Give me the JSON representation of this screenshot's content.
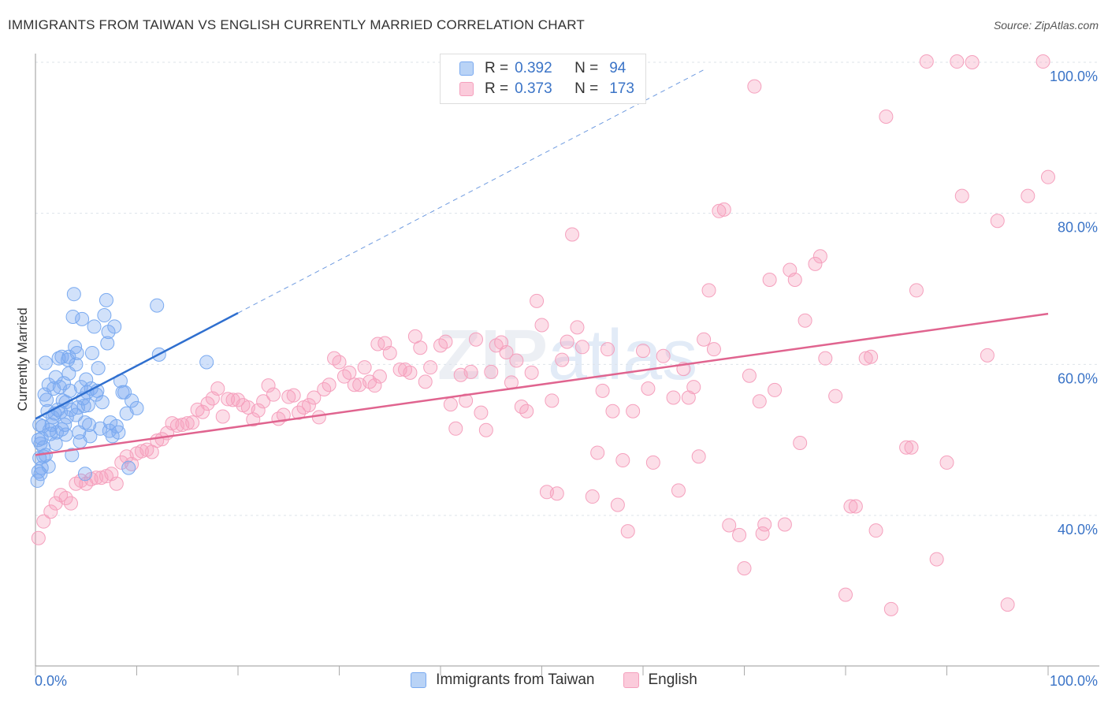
{
  "title": "IMMIGRANTS FROM TAIWAN VS ENGLISH CURRENTLY MARRIED CORRELATION CHART",
  "source": "Source: ZipAtlas.com",
  "watermark": {
    "a": "ZIP",
    "b": "atlas"
  },
  "legend": {
    "rows": [
      {
        "r_label": "R =",
        "r_value": "0.392",
        "n_label": "N =",
        "n_value": "94",
        "color": "#7aaaf0"
      },
      {
        "r_label": "R =",
        "r_value": "0.373",
        "n_label": "N =",
        "n_value": "173",
        "color": "#f5a0bd"
      }
    ]
  },
  "bottom_legend": [
    "Immigrants from Taiwan",
    "English"
  ],
  "chart_data": {
    "type": "scatter",
    "title": "IMMIGRANTS FROM TAIWAN VS ENGLISH CURRENTLY MARRIED CORRELATION CHART",
    "xlabel": "",
    "ylabel": "Currently Married",
    "xlim": [
      0,
      100
    ],
    "ylim": [
      20,
      103
    ],
    "x_tick_labels": [
      "0.0%",
      "100.0%"
    ],
    "y_ticks": [
      40,
      60,
      80,
      100
    ],
    "y_tick_labels": [
      "40.0%",
      "60.0%",
      "80.0%",
      "100.0%"
    ],
    "grid": true,
    "legend_position": "top-center",
    "series": [
      {
        "name": "Immigrants from Taiwan",
        "color": "#7aaaf0",
        "line_color": "#2f6fcf",
        "trend": {
          "x0": 0,
          "y0": 52.8,
          "x1": 20,
          "y1": 66.8,
          "dash_to_x": 66,
          "dash_to_y": 99
        },
        "points": [
          [
            0.2,
            44.6
          ],
          [
            0.3,
            45.8
          ],
          [
            0.4,
            47.6
          ],
          [
            0.5,
            49.5
          ],
          [
            0.6,
            50.2
          ],
          [
            0.7,
            51.8
          ],
          [
            0.8,
            49.0
          ],
          [
            1.0,
            48.0
          ],
          [
            0.4,
            52.0
          ],
          [
            0.6,
            46.3
          ],
          [
            1.2,
            53.8
          ],
          [
            1.1,
            55.3
          ],
          [
            1.3,
            57.3
          ],
          [
            1.5,
            50.8
          ],
          [
            1.6,
            52.0
          ],
          [
            1.8,
            56.8
          ],
          [
            1.9,
            53.5
          ],
          [
            2.0,
            58.3
          ],
          [
            2.1,
            51.0
          ],
          [
            2.2,
            54.0
          ],
          [
            2.3,
            60.8
          ],
          [
            2.4,
            57.0
          ],
          [
            2.5,
            53.7
          ],
          [
            2.6,
            61.0
          ],
          [
            2.7,
            55.2
          ],
          [
            2.8,
            57.5
          ],
          [
            2.9,
            52.0
          ],
          [
            3.0,
            50.7
          ],
          [
            3.1,
            53.0
          ],
          [
            3.2,
            60.6
          ],
          [
            3.3,
            61.0
          ],
          [
            3.4,
            56.5
          ],
          [
            3.5,
            54.0
          ],
          [
            3.6,
            48.0
          ],
          [
            3.7,
            66.3
          ],
          [
            3.8,
            69.3
          ],
          [
            3.9,
            62.3
          ],
          [
            4.0,
            60.0
          ],
          [
            4.1,
            61.5
          ],
          [
            4.2,
            54.3
          ],
          [
            4.3,
            51.0
          ],
          [
            4.4,
            49.8
          ],
          [
            4.5,
            57.0
          ],
          [
            4.6,
            66.0
          ],
          [
            4.7,
            55.5
          ],
          [
            4.8,
            54.5
          ],
          [
            4.9,
            45.5
          ],
          [
            5.0,
            58.0
          ],
          [
            5.1,
            56.3
          ],
          [
            5.2,
            54.6
          ],
          [
            5.3,
            52.0
          ],
          [
            5.4,
            50.5
          ],
          [
            5.5,
            56.8
          ],
          [
            5.6,
            61.5
          ],
          [
            5.8,
            65.0
          ],
          [
            6.0,
            56.0
          ],
          [
            6.2,
            59.5
          ],
          [
            6.4,
            51.5
          ],
          [
            6.6,
            55.0
          ],
          [
            6.8,
            66.5
          ],
          [
            7.0,
            68.5
          ],
          [
            7.1,
            62.8
          ],
          [
            7.2,
            64.3
          ],
          [
            7.4,
            52.3
          ],
          [
            7.6,
            50.5
          ],
          [
            7.8,
            65.0
          ],
          [
            8.0,
            51.8
          ],
          [
            8.2,
            51.0
          ],
          [
            8.4,
            57.8
          ],
          [
            8.6,
            56.3
          ],
          [
            8.8,
            56.3
          ],
          [
            9.0,
            53.5
          ],
          [
            9.2,
            46.3
          ],
          [
            9.5,
            55.2
          ],
          [
            10.0,
            54.2
          ],
          [
            12.0,
            67.8
          ],
          [
            12.2,
            61.3
          ],
          [
            16.9,
            60.3
          ],
          [
            1.0,
            60.2
          ],
          [
            0.9,
            56.0
          ],
          [
            2.0,
            49.5
          ],
          [
            1.4,
            51.3
          ],
          [
            3.0,
            55.0
          ],
          [
            4.0,
            53.3
          ],
          [
            0.5,
            45.5
          ],
          [
            0.8,
            47.8
          ],
          [
            1.7,
            53.0
          ],
          [
            2.6,
            51.4
          ],
          [
            3.3,
            58.8
          ],
          [
            4.9,
            52.3
          ],
          [
            6.1,
            56.5
          ],
          [
            7.3,
            51.2
          ],
          [
            1.3,
            46.5
          ],
          [
            0.3,
            50.0
          ]
        ]
      },
      {
        "name": "English",
        "color": "#f5a0bd",
        "line_color": "#e0648f",
        "trend": {
          "x0": 0,
          "y0": 48.0,
          "x1": 100,
          "y1": 66.7
        },
        "points": [
          [
            0.3,
            37.0
          ],
          [
            0.8,
            39.2
          ],
          [
            1.5,
            40.5
          ],
          [
            2.0,
            41.6
          ],
          [
            2.5,
            42.7
          ],
          [
            3.0,
            42.3
          ],
          [
            3.5,
            41.6
          ],
          [
            4.0,
            44.2
          ],
          [
            4.5,
            44.6
          ],
          [
            5.0,
            44.2
          ],
          [
            5.5,
            44.8
          ],
          [
            6.0,
            45.0
          ],
          [
            6.5,
            45.0
          ],
          [
            7.0,
            45.2
          ],
          [
            7.5,
            45.5
          ],
          [
            8.0,
            44.2
          ],
          [
            8.5,
            47.0
          ],
          [
            9.0,
            47.8
          ],
          [
            9.5,
            46.8
          ],
          [
            10.0,
            48.2
          ],
          [
            10.5,
            48.5
          ],
          [
            11.0,
            48.7
          ],
          [
            11.5,
            48.4
          ],
          [
            12.0,
            49.9
          ],
          [
            12.5,
            50.1
          ],
          [
            13.0,
            50.9
          ],
          [
            13.5,
            52.2
          ],
          [
            14.0,
            51.9
          ],
          [
            14.5,
            52.0
          ],
          [
            15.0,
            52.2
          ],
          [
            15.5,
            52.3
          ],
          [
            16.0,
            54.0
          ],
          [
            16.5,
            53.7
          ],
          [
            17.0,
            54.8
          ],
          [
            17.5,
            55.5
          ],
          [
            18.0,
            56.8
          ],
          [
            18.5,
            53.1
          ],
          [
            19.0,
            55.4
          ],
          [
            19.5,
            55.3
          ],
          [
            20.0,
            55.3
          ],
          [
            20.5,
            54.6
          ],
          [
            21.0,
            54.3
          ],
          [
            21.5,
            52.7
          ],
          [
            22.0,
            53.9
          ],
          [
            22.5,
            55.1
          ],
          [
            23.0,
            57.2
          ],
          [
            23.5,
            56.0
          ],
          [
            24.0,
            52.8
          ],
          [
            24.5,
            53.3
          ],
          [
            25.0,
            55.7
          ],
          [
            25.5,
            55.9
          ],
          [
            26.0,
            53.6
          ],
          [
            26.5,
            54.3
          ],
          [
            27.0,
            54.6
          ],
          [
            27.5,
            55.6
          ],
          [
            28.0,
            53.0
          ],
          [
            28.5,
            56.7
          ],
          [
            29.0,
            57.3
          ],
          [
            29.5,
            60.8
          ],
          [
            30.0,
            60.3
          ],
          [
            30.5,
            58.4
          ],
          [
            31.0,
            58.9
          ],
          [
            31.5,
            57.3
          ],
          [
            32.0,
            57.3
          ],
          [
            32.5,
            59.6
          ],
          [
            33.0,
            57.7
          ],
          [
            33.5,
            57.2
          ],
          [
            34.0,
            58.4
          ],
          [
            34.5,
            62.8
          ],
          [
            35.0,
            61.5
          ],
          [
            36.0,
            59.3
          ],
          [
            36.5,
            59.3
          ],
          [
            37.0,
            58.9
          ],
          [
            37.5,
            63.7
          ],
          [
            38.0,
            62.2
          ],
          [
            38.5,
            57.7
          ],
          [
            39.0,
            59.6
          ],
          [
            40.0,
            62.5
          ],
          [
            40.5,
            63.0
          ],
          [
            41.0,
            54.7
          ],
          [
            41.5,
            51.5
          ],
          [
            42.0,
            58.6
          ],
          [
            42.5,
            55.2
          ],
          [
            43.0,
            59.0
          ],
          [
            43.5,
            63.3
          ],
          [
            44.0,
            53.6
          ],
          [
            44.5,
            51.3
          ],
          [
            45.0,
            59.0
          ],
          [
            45.5,
            62.5
          ],
          [
            46.0,
            62.9
          ],
          [
            46.5,
            61.6
          ],
          [
            47.0,
            57.6
          ],
          [
            48.0,
            54.4
          ],
          [
            48.5,
            53.8
          ],
          [
            49.0,
            58.9
          ],
          [
            49.5,
            68.4
          ],
          [
            50.0,
            65.2
          ],
          [
            50.5,
            43.1
          ],
          [
            51.0,
            55.2
          ],
          [
            51.5,
            42.9
          ],
          [
            52.0,
            60.6
          ],
          [
            53.0,
            77.2
          ],
          [
            53.5,
            64.9
          ],
          [
            54.0,
            62.3
          ],
          [
            55.0,
            42.5
          ],
          [
            55.5,
            48.3
          ],
          [
            56.0,
            56.5
          ],
          [
            56.5,
            62.0
          ],
          [
            57.0,
            53.8
          ],
          [
            57.5,
            41.4
          ],
          [
            58.0,
            47.3
          ],
          [
            59.0,
            53.8
          ],
          [
            60.0,
            61.8
          ],
          [
            60.5,
            56.8
          ],
          [
            61.0,
            47.0
          ],
          [
            62.0,
            61.1
          ],
          [
            63.0,
            55.6
          ],
          [
            63.5,
            43.3
          ],
          [
            64.0,
            59.4
          ],
          [
            64.5,
            55.6
          ],
          [
            65.0,
            57.0
          ],
          [
            65.5,
            47.8
          ],
          [
            66.0,
            63.3
          ],
          [
            66.5,
            69.8
          ],
          [
            67.0,
            62.0
          ],
          [
            67.5,
            80.3
          ],
          [
            68.0,
            80.5
          ],
          [
            68.5,
            38.7
          ],
          [
            69.5,
            37.4
          ],
          [
            70.0,
            33.0
          ],
          [
            70.5,
            58.5
          ],
          [
            71.0,
            96.8
          ],
          [
            71.5,
            55.1
          ],
          [
            72.0,
            38.8
          ],
          [
            72.5,
            71.2
          ],
          [
            73.0,
            56.6
          ],
          [
            74.0,
            38.8
          ],
          [
            74.5,
            72.5
          ],
          [
            75.0,
            71.2
          ],
          [
            75.5,
            49.6
          ],
          [
            76.0,
            65.8
          ],
          [
            77.0,
            73.3
          ],
          [
            77.5,
            74.3
          ],
          [
            78.0,
            60.8
          ],
          [
            79.0,
            55.8
          ],
          [
            80.0,
            29.5
          ],
          [
            80.5,
            41.2
          ],
          [
            81.0,
            41.2
          ],
          [
            82.0,
            60.8
          ],
          [
            82.5,
            61.0
          ],
          [
            83.0,
            38.0
          ],
          [
            84.0,
            92.8
          ],
          [
            84.5,
            27.6
          ],
          [
            86.0,
            49.0
          ],
          [
            86.5,
            49.0
          ],
          [
            87.0,
            69.8
          ],
          [
            88.0,
            100.1
          ],
          [
            89.0,
            34.2
          ],
          [
            90.0,
            47.0
          ],
          [
            91.0,
            100.1
          ],
          [
            91.5,
            82.3
          ],
          [
            92.5,
            100.0
          ],
          [
            94.0,
            61.2
          ],
          [
            95.0,
            79.0
          ],
          [
            96.0,
            28.2
          ],
          [
            98.0,
            82.3
          ],
          [
            99.5,
            100.1
          ],
          [
            100.0,
            84.8
          ],
          [
            52.5,
            63.0
          ],
          [
            33.8,
            62.7
          ],
          [
            58.5,
            37.9
          ],
          [
            71.8,
            37.6
          ],
          [
            47.5,
            60.5
          ]
        ]
      }
    ]
  }
}
